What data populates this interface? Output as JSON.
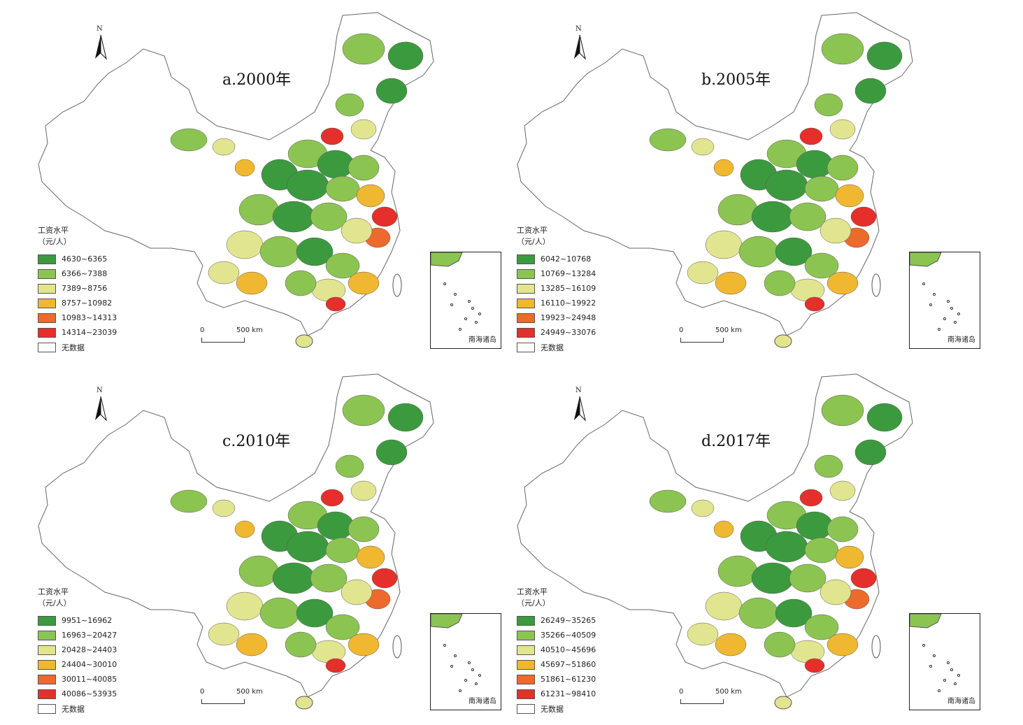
{
  "colors": {
    "class1": "#3c9a3e",
    "class2": "#8cc452",
    "class3": "#e2e58f",
    "class4": "#f0b830",
    "class5": "#ec6a2c",
    "class6": "#e52f2a",
    "nodata": "#ffffff"
  },
  "common": {
    "north_letter": "N",
    "legend_title": "工资水平",
    "legend_unit": "（元/人）",
    "nodata_label": "无数据",
    "scale_zero": "0",
    "scale_distance": "500 km",
    "inset_label": "南海诸岛"
  },
  "panels": [
    {
      "title": "a.2000年",
      "legend": [
        "4630~6365",
        "6366~7388",
        "7389~8756",
        "8757~10982",
        "10983~14313",
        "14314~23039"
      ]
    },
    {
      "title": "b.2005年",
      "legend": [
        "6042~10768",
        "10769~13284",
        "13285~16109",
        "16110~19922",
        "19923~24948",
        "24949~33076"
      ]
    },
    {
      "title": "c.2010年",
      "legend": [
        "9951~16962",
        "16963~20427",
        "20428~24403",
        "24404~30010",
        "30011~40085",
        "40086~53935"
      ]
    },
    {
      "title": "d.2017年",
      "legend": [
        "26249~35265",
        "35266~40509",
        "40510~45696",
        "45697~51860",
        "51861~61230",
        "61231~98410"
      ]
    }
  ]
}
